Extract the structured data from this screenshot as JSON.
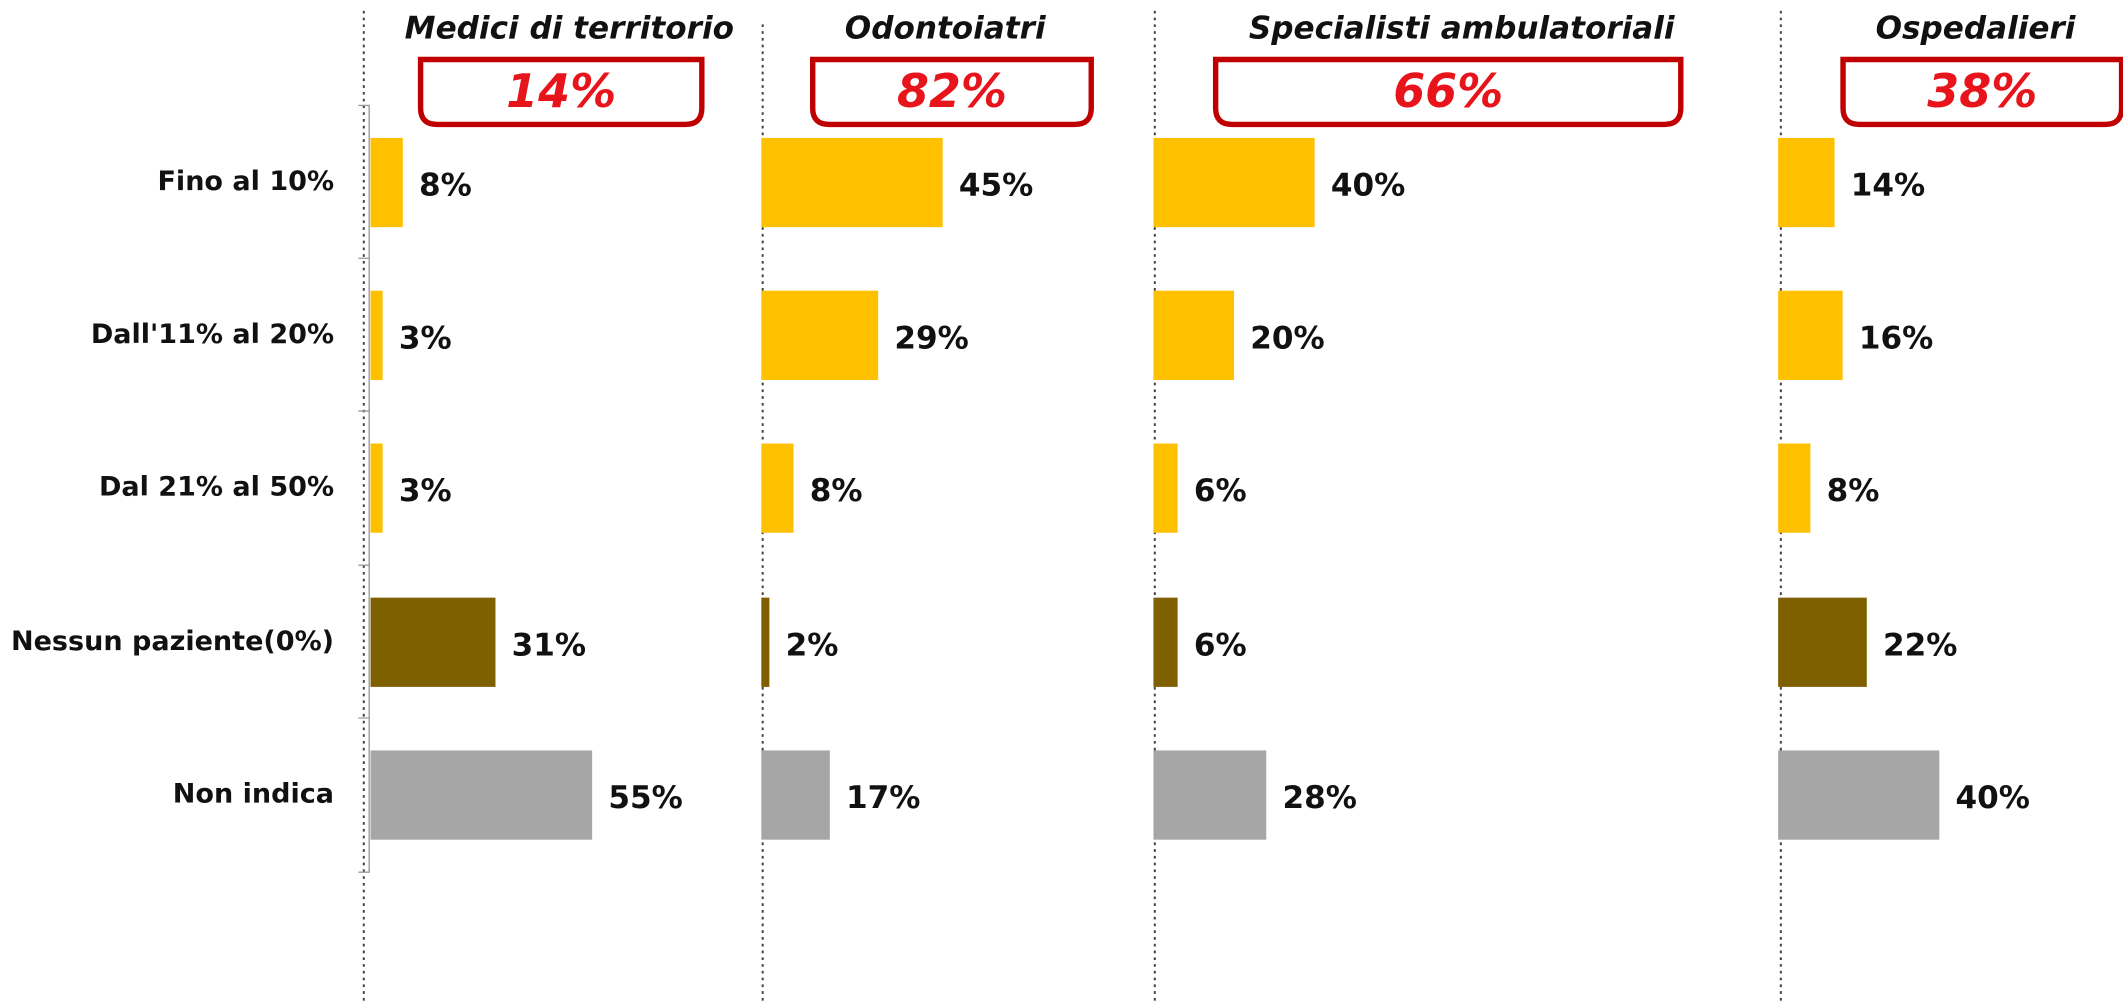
{
  "chart_data": [
    {
      "type": "bar",
      "title": "Medici di territorio",
      "annotation": "14%",
      "categories": [
        "Fino al 10%",
        "Dall'11% al 20%",
        "Dal 21% al 50%",
        "Nessun paziente(0%)",
        "Non indica"
      ],
      "values": [
        8,
        3,
        3,
        31,
        55
      ],
      "value_labels": [
        "8%",
        "3%",
        "3%",
        "31%",
        "55%"
      ],
      "colors": [
        "#FFC000",
        "#FFC000",
        "#FFC000",
        "#7F6000",
        "#A6A6A6"
      ]
    },
    {
      "type": "bar",
      "title": "Odontoiatri",
      "annotation": "82%",
      "values": [
        45,
        29,
        8,
        2,
        17
      ],
      "value_labels": [
        "45%",
        "29%",
        "8%",
        "2%",
        "17%"
      ],
      "colors": [
        "#FFC000",
        "#FFC000",
        "#FFC000",
        "#7F6000",
        "#A6A6A6"
      ]
    },
    {
      "type": "bar",
      "title": "Specialisti ambulatoriali",
      "annotation": "66%",
      "values": [
        40,
        20,
        6,
        6,
        28
      ],
      "value_labels": [
        "40%",
        "20%",
        "6%",
        "6%",
        "28%"
      ],
      "colors": [
        "#FFC000",
        "#FFC000",
        "#FFC000",
        "#7F6000",
        "#A6A6A6"
      ]
    },
    {
      "type": "bar",
      "title": "Ospedalieri",
      "annotation": "38%",
      "values": [
        14,
        16,
        8,
        22,
        40
      ],
      "value_labels": [
        "14%",
        "16%",
        "8%",
        "22%",
        "40%"
      ],
      "colors": [
        "#FFC000",
        "#FFC000",
        "#FFC000",
        "#7F6000",
        "#A6A6A6"
      ]
    }
  ]
}
